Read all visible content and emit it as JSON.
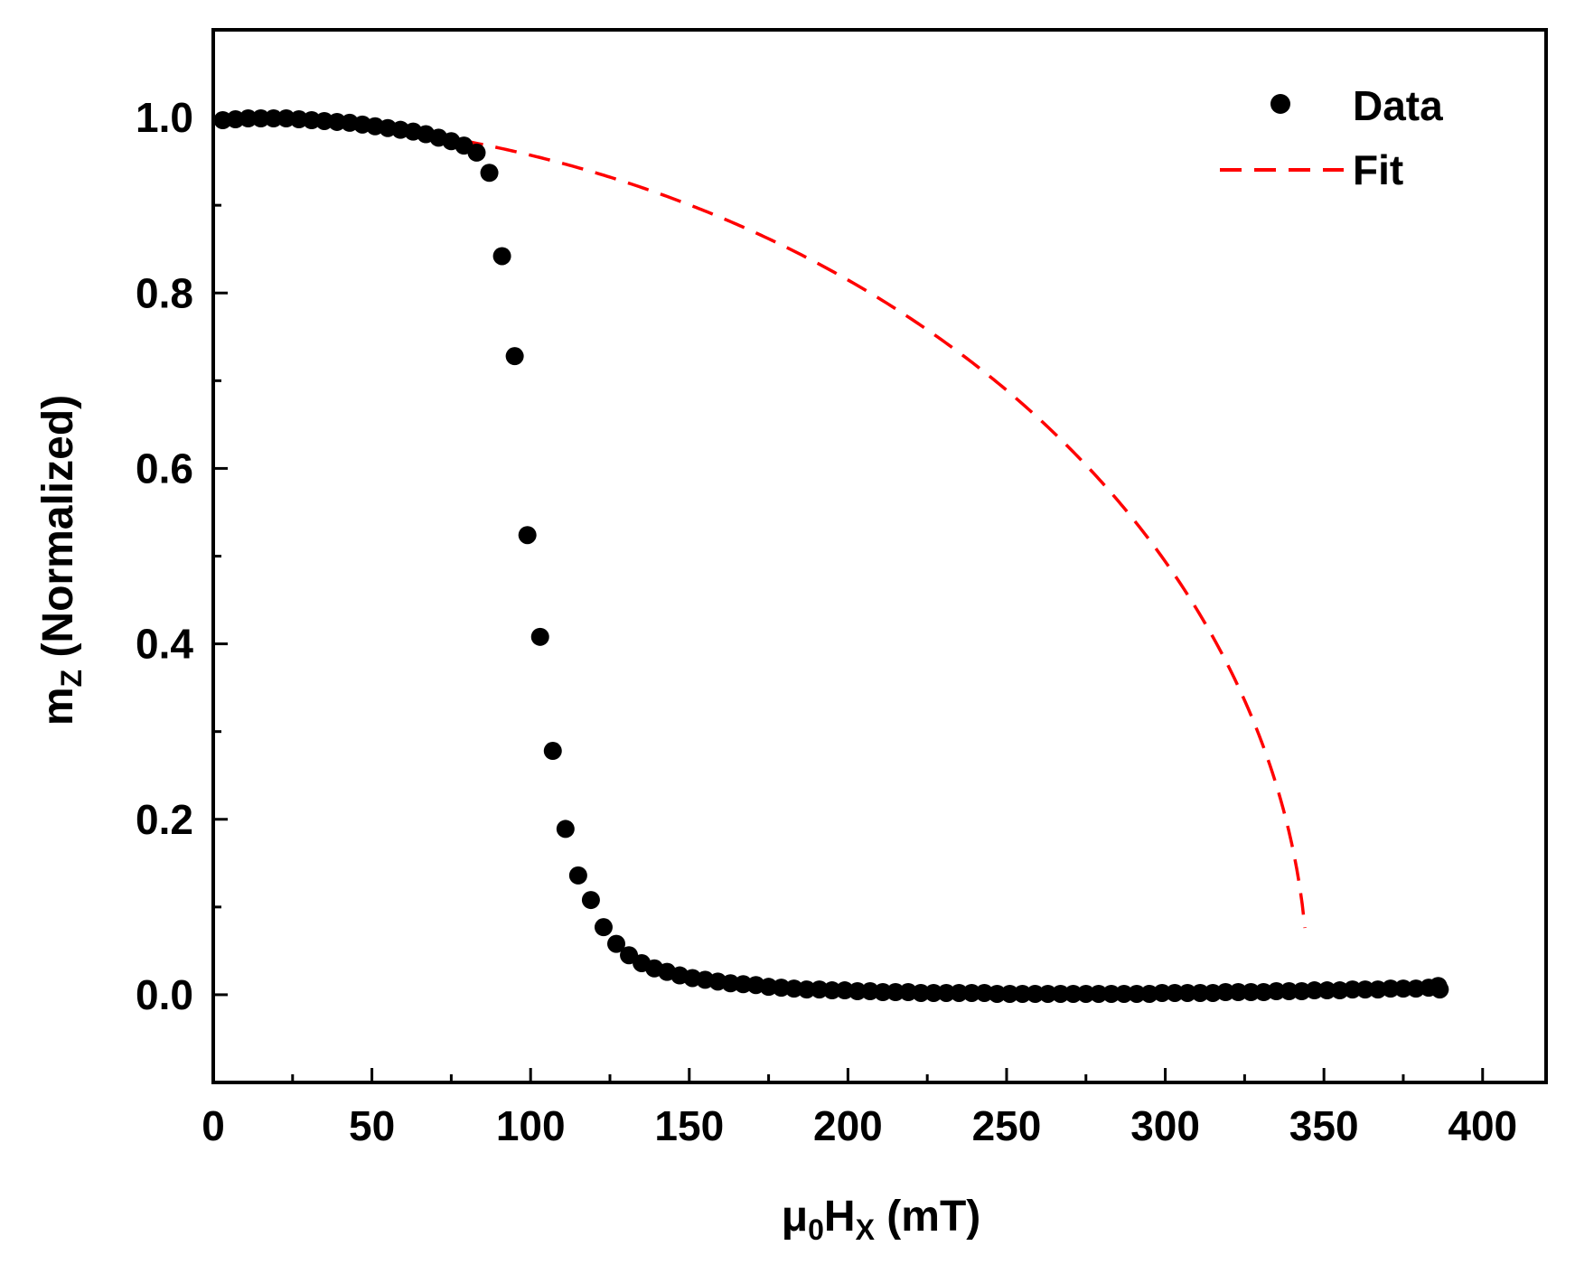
{
  "chart_data": {
    "type": "scatter",
    "title": "",
    "xlabel": {
      "base": "μ",
      "sub1": "0",
      "mid": "H",
      "sub2": "X",
      "unit": " (mT)"
    },
    "ylabel": {
      "base": "m",
      "sub": "Z",
      "rest": " (Normalized)"
    },
    "xlim": [
      0,
      420
    ],
    "ylim": [
      -0.1,
      1.1
    ],
    "x_ticks": [
      0,
      50,
      100,
      150,
      200,
      250,
      300,
      350,
      400
    ],
    "x_tick_labels": [
      "0",
      "50",
      "100",
      "150",
      "200",
      "250",
      "300",
      "350",
      "400"
    ],
    "y_ticks": [
      0.0,
      0.2,
      0.4,
      0.6,
      0.8,
      1.0
    ],
    "y_tick_labels": [
      "0.0",
      "0.2",
      "0.4",
      "0.6",
      "0.8",
      "1.0"
    ],
    "grid": false,
    "legend": {
      "position": "top-right",
      "entries": [
        "Data",
        "Fit"
      ]
    },
    "series": [
      {
        "name": "Data",
        "style": "markers",
        "color": "#000000",
        "points": [
          [
            3,
            0.997
          ],
          [
            7,
            0.998
          ],
          [
            11,
            0.999
          ],
          [
            15,
            0.999
          ],
          [
            19,
            0.999
          ],
          [
            23,
            0.999
          ],
          [
            27,
            0.998
          ],
          [
            31,
            0.997
          ],
          [
            35,
            0.996
          ],
          [
            39,
            0.995
          ],
          [
            43,
            0.994
          ],
          [
            47,
            0.992
          ],
          [
            51,
            0.99
          ],
          [
            55,
            0.988
          ],
          [
            59,
            0.986
          ],
          [
            63,
            0.984
          ],
          [
            67,
            0.981
          ],
          [
            71,
            0.977
          ],
          [
            75,
            0.973
          ],
          [
            79,
            0.968
          ],
          [
            83,
            0.96
          ],
          [
            87,
            0.937
          ],
          [
            91,
            0.842
          ],
          [
            95,
            0.728
          ],
          [
            99,
            0.524
          ],
          [
            103,
            0.408
          ],
          [
            107,
            0.278
          ],
          [
            111,
            0.189
          ],
          [
            115,
            0.136
          ],
          [
            119,
            0.108
          ],
          [
            123,
            0.077
          ],
          [
            127,
            0.058
          ],
          [
            131,
            0.045
          ],
          [
            135,
            0.036
          ],
          [
            139,
            0.03
          ],
          [
            143,
            0.026
          ],
          [
            147,
            0.022
          ],
          [
            151,
            0.019
          ],
          [
            155,
            0.017
          ],
          [
            159,
            0.015
          ],
          [
            163,
            0.013
          ],
          [
            167,
            0.012
          ],
          [
            171,
            0.011
          ],
          [
            175,
            0.009
          ],
          [
            179,
            0.008
          ],
          [
            183,
            0.007
          ],
          [
            187,
            0.006
          ],
          [
            191,
            0.006
          ],
          [
            195,
            0.005
          ],
          [
            199,
            0.005
          ],
          [
            203,
            0.004
          ],
          [
            207,
            0.004
          ],
          [
            211,
            0.003
          ],
          [
            215,
            0.003
          ],
          [
            219,
            0.003
          ],
          [
            223,
            0.002
          ],
          [
            227,
            0.002
          ],
          [
            231,
            0.002
          ],
          [
            235,
            0.002
          ],
          [
            239,
            0.002
          ],
          [
            243,
            0.002
          ],
          [
            247,
            0.001
          ],
          [
            251,
            0.001
          ],
          [
            255,
            0.001
          ],
          [
            259,
            0.001
          ],
          [
            263,
            0.001
          ],
          [
            267,
            0.001
          ],
          [
            271,
            0.001
          ],
          [
            275,
            0.001
          ],
          [
            279,
            0.001
          ],
          [
            283,
            0.001
          ],
          [
            287,
            0.001
          ],
          [
            291,
            0.001
          ],
          [
            295,
            0.001
          ],
          [
            299,
            0.002
          ],
          [
            303,
            0.002
          ],
          [
            307,
            0.002
          ],
          [
            311,
            0.002
          ],
          [
            315,
            0.002
          ],
          [
            319,
            0.003
          ],
          [
            323,
            0.003
          ],
          [
            327,
            0.003
          ],
          [
            331,
            0.003
          ],
          [
            335,
            0.004
          ],
          [
            339,
            0.004
          ],
          [
            343,
            0.004
          ],
          [
            347,
            0.005
          ],
          [
            351,
            0.005
          ],
          [
            355,
            0.005
          ],
          [
            359,
            0.006
          ],
          [
            363,
            0.006
          ],
          [
            367,
            0.006
          ],
          [
            371,
            0.007
          ],
          [
            375,
            0.007
          ],
          [
            379,
            0.007
          ],
          [
            383,
            0.008
          ],
          [
            386,
            0.01
          ],
          [
            386.5,
            0.006
          ]
        ]
      },
      {
        "name": "Fit",
        "style": "dashed-line",
        "color": "#ff0000",
        "equation": "m = sqrt(1 - (H/Hk)^2)",
        "Hk": 345,
        "x_range": [
          3,
          344
        ]
      }
    ]
  }
}
